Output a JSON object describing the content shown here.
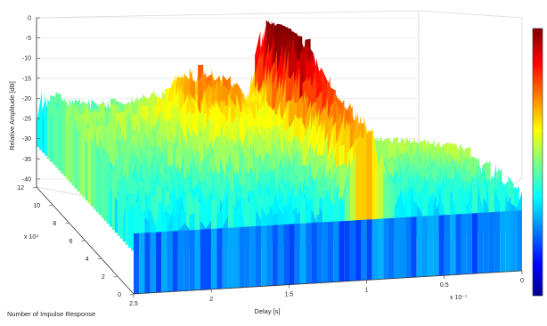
{
  "chart_data": {
    "type": "surface",
    "xlabel": "Delay [s]",
    "ylabel": "Number of Impulse Response",
    "zlabel": "Relative Amplitude [dB]",
    "x_exponent": "x 10⁻⁷",
    "y_exponent": "x 10⁴",
    "x_ticks": [
      "2.5",
      "2",
      "1.5",
      "1",
      "0.5",
      "0"
    ],
    "x_tick_values": [
      2.5,
      2,
      1.5,
      1,
      0.5,
      0
    ],
    "y_ticks": [
      "0",
      "2",
      "4",
      "6",
      "8",
      "10",
      "12"
    ],
    "y_tick_values": [
      0,
      2,
      4,
      6,
      8,
      10,
      12
    ],
    "z_ticks": [
      "0",
      "-5",
      "-10",
      "-15",
      "-20",
      "-25",
      "-30",
      "-35",
      "-40"
    ],
    "z_tick_values": [
      0,
      -5,
      -10,
      -15,
      -20,
      -25,
      -30,
      -35,
      -40
    ],
    "xlim": [
      0,
      2.5
    ],
    "ylim": [
      0,
      12
    ],
    "zlim": [
      -42,
      0
    ],
    "grid": true,
    "colormap": "jet",
    "colorbar": "right",
    "dominant_ridge": {
      "delay_x1e-7": 1.0,
      "peak_dB": 0
    }
  }
}
